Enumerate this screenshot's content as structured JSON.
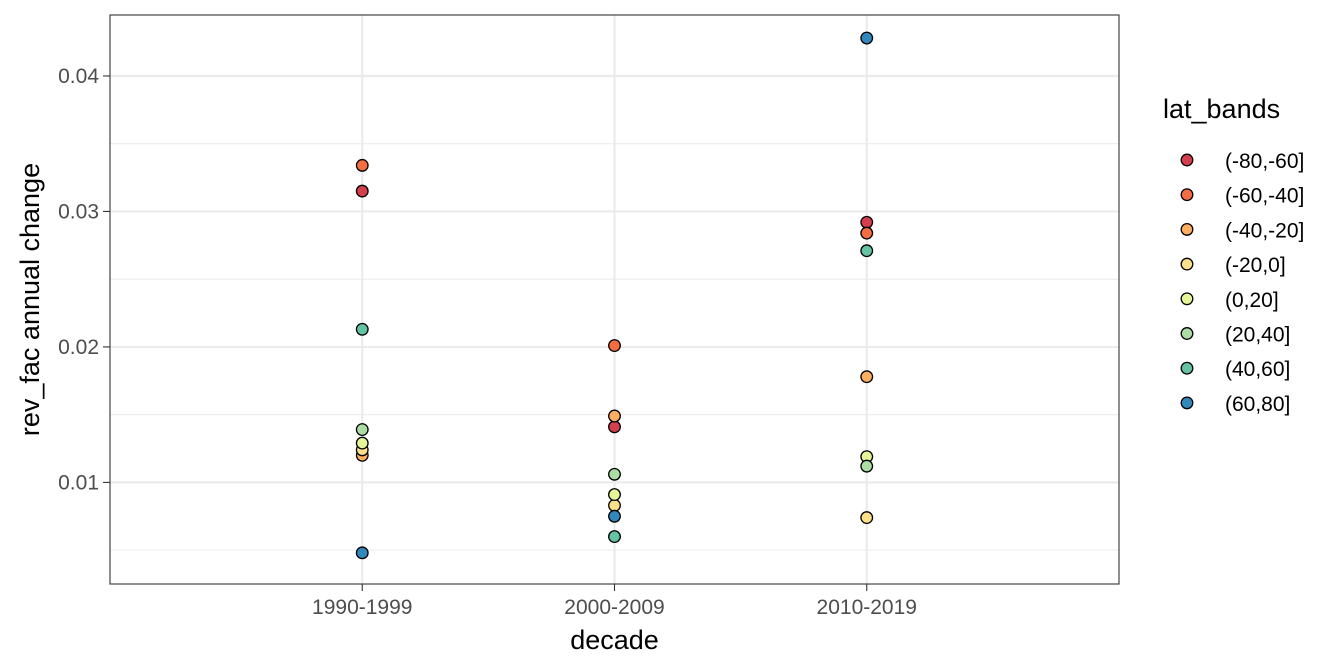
{
  "chart_data": {
    "type": "scatter",
    "title": "",
    "xlabel": "decade",
    "ylabel": "rev_fac annual change",
    "categories": [
      "1990-1999",
      "2000-2009",
      "2010-2019"
    ],
    "ylim": [
      0.0025,
      0.0445
    ],
    "yticks": [
      0.01,
      0.02,
      0.03,
      0.04
    ],
    "ytick_labels": [
      "0.01",
      "0.02",
      "0.03",
      "0.04"
    ],
    "grid": true,
    "legend_title": "lat_bands",
    "legend_position": "right",
    "series": [
      {
        "name": "(-80,-60]",
        "color": "#D53E4F",
        "values": [
          0.0315,
          0.0141,
          0.0292
        ]
      },
      {
        "name": "(-60,-40]",
        "color": "#F46D43",
        "values": [
          0.0334,
          0.0201,
          0.0284
        ]
      },
      {
        "name": "(-40,-20]",
        "color": "#FDAE61",
        "values": [
          0.012,
          0.0149,
          0.0178
        ]
      },
      {
        "name": "(-20,0]",
        "color": "#FEE08B",
        "values": [
          0.0124,
          0.0083,
          0.0074
        ]
      },
      {
        "name": "(0,20]",
        "color": "#E6F598",
        "values": [
          0.0129,
          0.0091,
          0.0119
        ]
      },
      {
        "name": "(20,40]",
        "color": "#ABDDA4",
        "values": [
          0.0139,
          0.0106,
          0.0112
        ]
      },
      {
        "name": "(40,60]",
        "color": "#66C2A5",
        "values": [
          0.0213,
          0.006,
          0.0271
        ]
      },
      {
        "name": "(60,80]",
        "color": "#3288BD",
        "values": [
          0.0048,
          0.0075,
          0.0428
        ]
      }
    ]
  }
}
